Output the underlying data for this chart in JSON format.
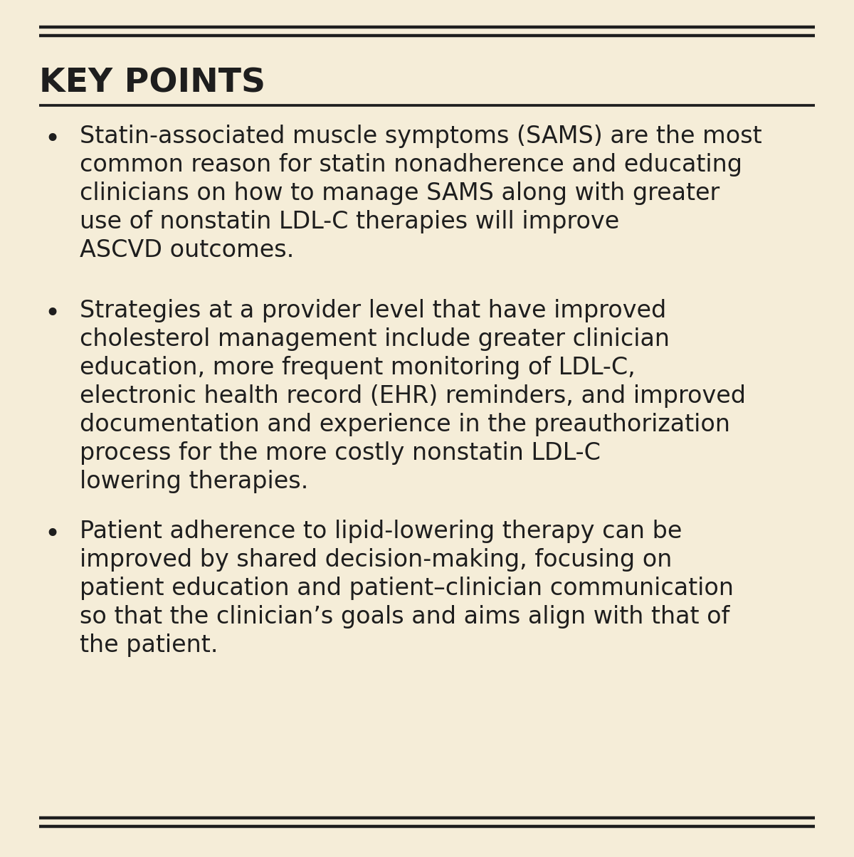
{
  "background_color": "#f5edd8",
  "text_color": "#1e1e1e",
  "title": "KEY POINTS",
  "title_fontsize": 34,
  "title_font_weight": "bold",
  "bullet_fontsize": 24,
  "line_color": "#1e1e1e",
  "line_width": 2.2,
  "bullet_points": [
    [
      "Statin-associated muscle symptoms (SAMS) are the most",
      "common reason for statin nonadherence and educating",
      "clinicians on how to manage SAMS along with greater",
      "use of nonstatin LDL-C therapies will improve",
      "ASCVD outcomes."
    ],
    [
      "Strategies at a provider level that have improved",
      "cholesterol management include greater clinician",
      "education, more frequent monitoring of LDL-C,",
      "electronic health record (EHR) reminders, and improved",
      "documentation and experience in the preauthorization",
      "process for the more costly nonstatin LDL-C",
      "lowering therapies."
    ],
    [
      "Patient adherence to lipid-lowering therapy can be",
      "improved by shared decision-making, focusing on",
      "patient education and patient–clinician communication",
      "so that the clinician’s goals and aims align with that of",
      "the patient."
    ]
  ]
}
